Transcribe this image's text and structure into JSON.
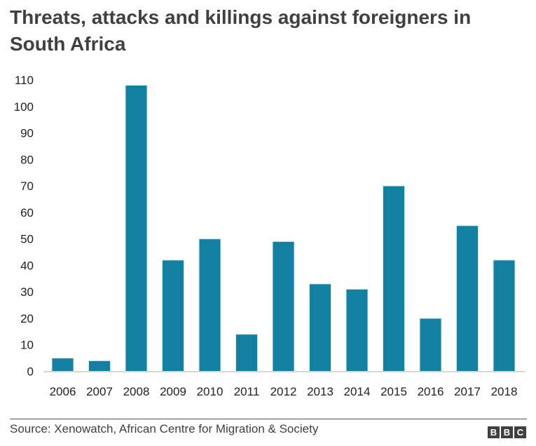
{
  "chart_data": {
    "type": "bar",
    "title": "Threats, attacks and killings against foreigners in South Africa",
    "categories": [
      "2006",
      "2007",
      "2008",
      "2009",
      "2010",
      "2011",
      "2012",
      "2013",
      "2014",
      "2015",
      "2016",
      "2017",
      "2018"
    ],
    "values": [
      5,
      4,
      108,
      42,
      50,
      14,
      49,
      33,
      31,
      70,
      20,
      55,
      42
    ],
    "xlabel": "",
    "ylabel": "",
    "ylim": [
      0,
      110
    ],
    "yticks": [
      0,
      10,
      20,
      30,
      40,
      50,
      60,
      70,
      80,
      90,
      100,
      110
    ],
    "grid": false,
    "bar_color": "#1380A1"
  },
  "source": "Source: Xenowatch, African Centre for Migration & Society",
  "logo": [
    "B",
    "B",
    "C"
  ]
}
